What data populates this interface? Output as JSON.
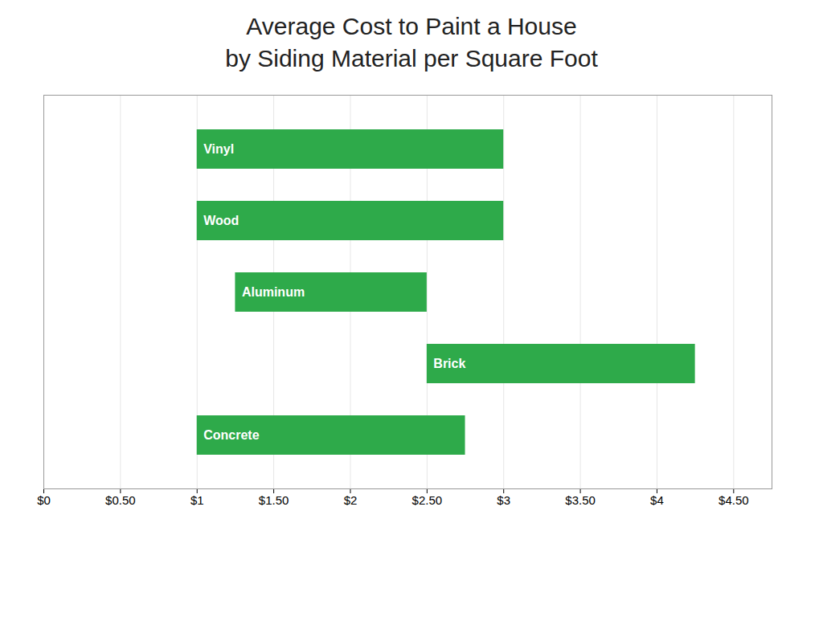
{
  "chart_data": {
    "type": "bar",
    "orientation": "horizontal",
    "title": "Average Cost to Paint a House",
    "subtitle": "by Siding Material per Square Foot",
    "categories": [
      "Vinyl",
      "Wood",
      "Aluminum",
      "Brick",
      "Concrete"
    ],
    "values": [
      [
        1.0,
        3.0
      ],
      [
        1.0,
        3.0
      ],
      [
        1.25,
        2.5
      ],
      [
        2.5,
        4.25
      ],
      [
        1.0,
        2.75
      ]
    ],
    "color": "#2eaa4a",
    "xlim": [
      0,
      4.75
    ],
    "xticks": [
      {
        "value": 0,
        "label": "$0"
      },
      {
        "value": 0.5,
        "label": "$0.50"
      },
      {
        "value": 1.0,
        "label": "$1"
      },
      {
        "value": 1.5,
        "label": "$1.50"
      },
      {
        "value": 2.0,
        "label": "$2"
      },
      {
        "value": 2.5,
        "label": "$2.50"
      },
      {
        "value": 3.0,
        "label": "$3"
      },
      {
        "value": 3.5,
        "label": "$3.50"
      },
      {
        "value": 4.0,
        "label": "$4"
      },
      {
        "value": 4.5,
        "label": "$4.50"
      }
    ],
    "grid": true,
    "tick_labels": "x"
  }
}
